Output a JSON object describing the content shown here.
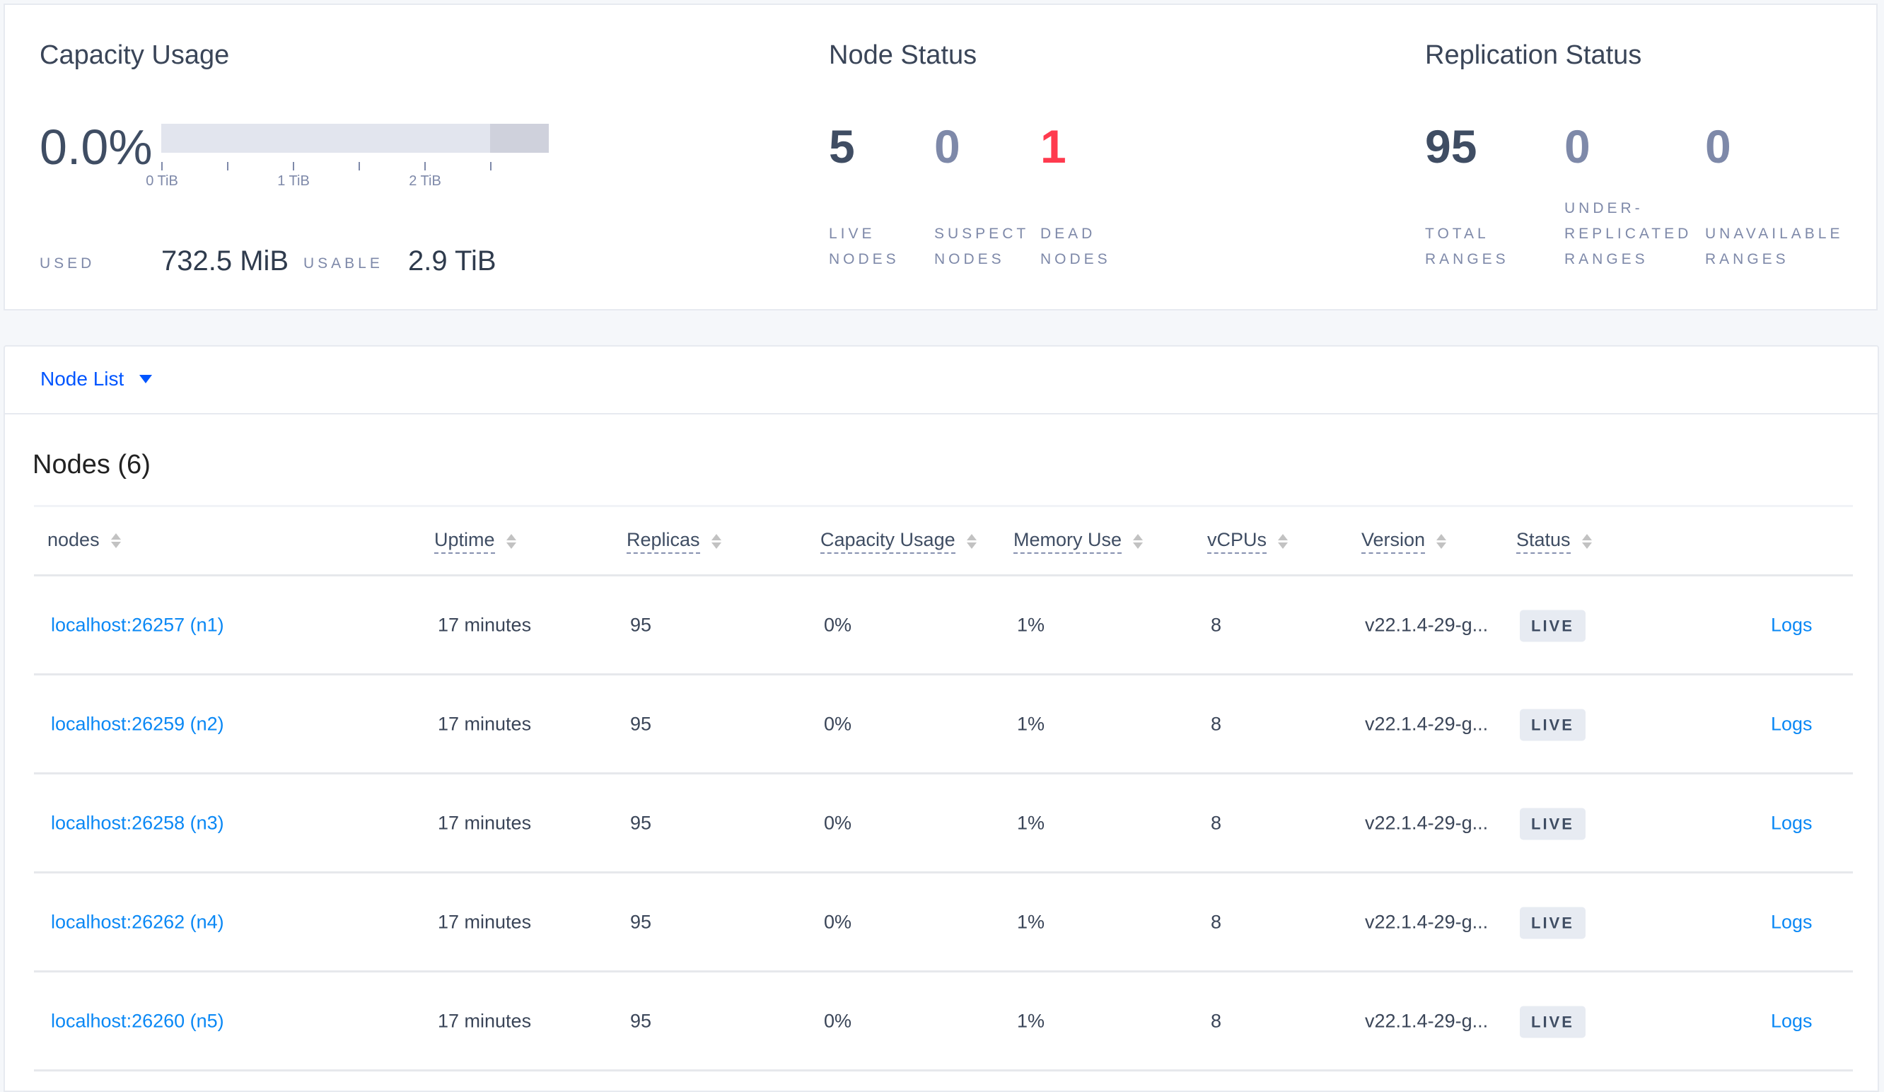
{
  "capacity": {
    "title": "Capacity Usage",
    "percent": "0.0%",
    "usage_fraction": 0.0,
    "bar_ticks": [
      "0 TiB",
      "1 TiB",
      "2 TiB"
    ],
    "used_label": "USED",
    "used_value": "732.5 MiB",
    "usable_label": "USABLE",
    "usable_value": "2.9 TiB"
  },
  "node_status": {
    "title": "Node Status",
    "stats": [
      {
        "value": "5",
        "label": "LIVE NODES"
      },
      {
        "value": "0",
        "label": "SUSPECT NODES"
      },
      {
        "value": "1",
        "label": "DEAD NODES"
      }
    ]
  },
  "replication_status": {
    "title": "Replication Status",
    "stats": [
      {
        "value": "95",
        "label": "TOTAL RANGES"
      },
      {
        "value": "0",
        "label": "UNDER-REPLICATED RANGES"
      },
      {
        "value": "0",
        "label": "UNAVAILABLE RANGES"
      }
    ]
  },
  "view_selector": {
    "label": "Node List",
    "icon": "caret-down-icon"
  },
  "nodes_table": {
    "title": "Nodes (6)",
    "columns": [
      "nodes",
      "Uptime",
      "Replicas",
      "Capacity Usage",
      "Memory Use",
      "vCPUs",
      "Version",
      "Status"
    ],
    "rows": [
      {
        "node": "localhost:26257 (n1)",
        "uptime": "17 minutes",
        "replicas": "95",
        "capacity": "0%",
        "memory": "1%",
        "vcpus": "8",
        "version": "v22.1.4-29-g...",
        "status": "LIVE",
        "logs": "Logs"
      },
      {
        "node": "localhost:26259 (n2)",
        "uptime": "17 minutes",
        "replicas": "95",
        "capacity": "0%",
        "memory": "1%",
        "vcpus": "8",
        "version": "v22.1.4-29-g...",
        "status": "LIVE",
        "logs": "Logs"
      },
      {
        "node": "localhost:26258 (n3)",
        "uptime": "17 minutes",
        "replicas": "95",
        "capacity": "0%",
        "memory": "1%",
        "vcpus": "8",
        "version": "v22.1.4-29-g...",
        "status": "LIVE",
        "logs": "Logs"
      },
      {
        "node": "localhost:26262 (n4)",
        "uptime": "17 minutes",
        "replicas": "95",
        "capacity": "0%",
        "memory": "1%",
        "vcpus": "8",
        "version": "v22.1.4-29-g...",
        "status": "LIVE",
        "logs": "Logs"
      },
      {
        "node": "localhost:26260 (n5)",
        "uptime": "17 minutes",
        "replicas": "95",
        "capacity": "0%",
        "memory": "1%",
        "vcpus": "8",
        "version": "v22.1.4-29-g...",
        "status": "LIVE",
        "logs": "Logs"
      }
    ]
  },
  "colors": {
    "dead": "#ff3a4e",
    "link": "#0a88f5",
    "selector": "#0055ff",
    "muted": "#7e89a9",
    "text": "#3f4d63"
  }
}
